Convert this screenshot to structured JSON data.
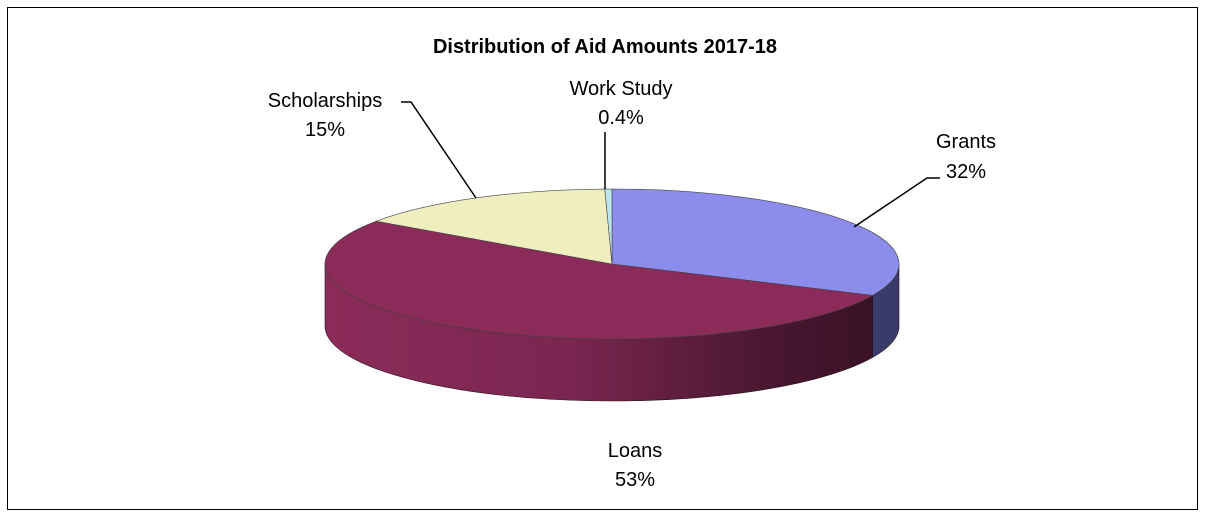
{
  "chart_data": {
    "type": "pie",
    "title": "Distribution of Aid Amounts 2017-18",
    "slices": [
      {
        "label": "Grants",
        "percent_label": "32%",
        "value": 32,
        "color": "#8b8cec",
        "side_color": "#3b3b6b"
      },
      {
        "label": "Loans",
        "percent_label": "53%",
        "value": 53,
        "color": "#8b2b59",
        "side_color": "#8b2b59"
      },
      {
        "label": "Scholarships",
        "percent_label": "15%",
        "value": 15,
        "color": "#efeebf",
        "side_color": "#b8b78f"
      },
      {
        "label": "Work Study",
        "percent_label": "0.4%",
        "value": 0.4,
        "color": "#bfe6ec",
        "side_color": "#8fb0b5"
      }
    ],
    "legend": "none",
    "style": "3d-pie"
  }
}
